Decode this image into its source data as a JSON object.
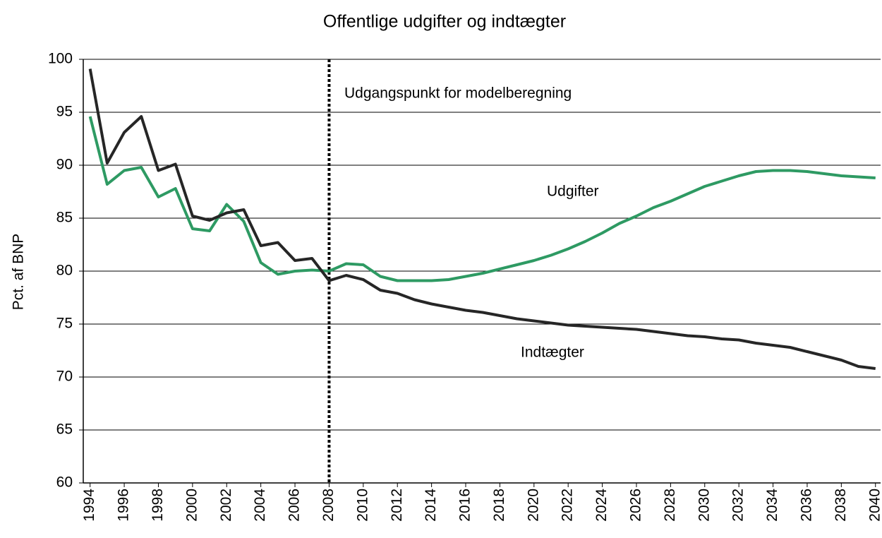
{
  "chart_data": {
    "type": "line",
    "title": "Offentlige udgifter og indtægter",
    "y_label": "Pct. af BNP",
    "annotation": "Udgangspunkt for modelberegning",
    "vline_x": 2008,
    "x": [
      1994,
      1995,
      1996,
      1997,
      1998,
      1999,
      2000,
      2001,
      2002,
      2003,
      2004,
      2005,
      2006,
      2007,
      2008,
      2009,
      2010,
      2011,
      2012,
      2013,
      2014,
      2015,
      2016,
      2017,
      2018,
      2019,
      2020,
      2021,
      2022,
      2023,
      2024,
      2025,
      2026,
      2027,
      2028,
      2029,
      2030,
      2031,
      2032,
      2033,
      2034,
      2035,
      2036,
      2037,
      2038,
      2039,
      2040
    ],
    "xlim": [
      1993.6,
      2040.3
    ],
    "xticks": [
      1994,
      1996,
      1998,
      2000,
      2002,
      2004,
      2006,
      2008,
      2010,
      2012,
      2014,
      2016,
      2018,
      2020,
      2022,
      2024,
      2026,
      2028,
      2030,
      2032,
      2034,
      2036,
      2038,
      2040
    ],
    "ylim": [
      60,
      100
    ],
    "yticks": [
      60,
      65,
      70,
      75,
      80,
      85,
      90,
      95,
      100
    ],
    "grid": true,
    "series": [
      {
        "name": "Udgifter",
        "color": "#2e9a63",
        "values": [
          94.6,
          88.2,
          89.5,
          89.8,
          87.0,
          87.8,
          84.0,
          83.8,
          86.3,
          84.7,
          80.8,
          79.7,
          80.0,
          80.1,
          80.0,
          80.7,
          80.6,
          79.5,
          79.1,
          79.1,
          79.1,
          79.2,
          79.5,
          79.8,
          80.2,
          80.6,
          81.0,
          81.5,
          82.1,
          82.8,
          83.6,
          84.5,
          85.2,
          86.0,
          86.6,
          87.3,
          88.0,
          88.5,
          89.0,
          89.4,
          89.5,
          89.5,
          89.4,
          89.2,
          89.0,
          88.9,
          88.8
        ]
      },
      {
        "name": "Indtægter",
        "color": "#262626",
        "values": [
          99.1,
          90.2,
          93.1,
          94.6,
          89.5,
          90.1,
          85.2,
          84.8,
          85.5,
          85.8,
          82.4,
          82.7,
          81.0,
          81.2,
          79.1,
          79.6,
          79.2,
          78.2,
          77.9,
          77.3,
          76.9,
          76.6,
          76.3,
          76.1,
          75.8,
          75.5,
          75.3,
          75.1,
          74.9,
          74.8,
          74.7,
          74.6,
          74.5,
          74.3,
          74.1,
          73.9,
          73.8,
          73.6,
          73.5,
          73.2,
          73.0,
          72.8,
          72.4,
          72.0,
          71.6,
          71.0,
          70.8
        ]
      }
    ]
  }
}
